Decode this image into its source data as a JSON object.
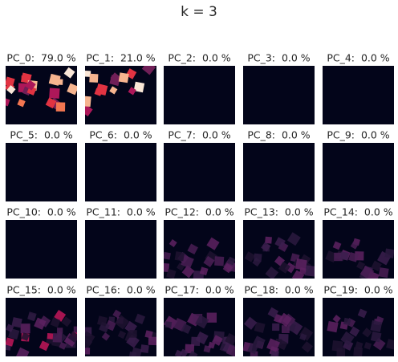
{
  "title": "k = 3",
  "panels": [
    "PC_0:  79.0 %",
    "PC_1:  21.0 %",
    "PC_2:  0.0 %",
    "PC_3:  0.0 %",
    "PC_4:  0.0 %",
    "PC_5:  0.0 %",
    "PC_6:  0.0 %",
    "PC_7:  0.0 %",
    "PC_8:  0.0 %",
    "PC_9:  0.0 %",
    "PC_10:  0.0 %",
    "PC_11:  0.0 %",
    "PC_12:  0.0 %",
    "PC_13:  0.0 %",
    "PC_14:  0.0 %",
    "PC_15:  0.0 %",
    "PC_16:  0.0 %",
    "PC_17:  0.0 %",
    "PC_18:  0.0 %",
    "PC_19:  0.0 %"
  ]
}
